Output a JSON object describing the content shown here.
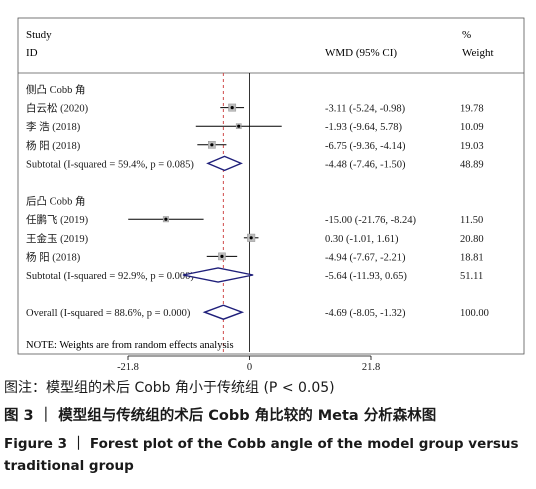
{
  "chart_data": {
    "type": "forest",
    "header": {
      "study_line1": "Study",
      "study_line2": "ID",
      "effect": "WMD (95% CI)",
      "weight_line1": "%",
      "weight_line2": "Weight"
    },
    "xaxis": {
      "range": [
        -21.8,
        21.8
      ],
      "ticks": [
        -21.8,
        0,
        21.8
      ],
      "tick_labels": [
        "-21.8",
        "0",
        "21.8"
      ],
      "reference_line": -4.69
    },
    "rows": [
      {
        "kind": "group",
        "label": "侧凸 Cobb 角"
      },
      {
        "kind": "study",
        "label": "白云松 (2020)",
        "est": -3.11,
        "lo": -5.24,
        "hi": -0.98,
        "ci": "-3.11 (-5.24, -0.98)",
        "weight": "19.78"
      },
      {
        "kind": "study",
        "label": "李 浩 (2018)",
        "est": -1.93,
        "lo": -9.64,
        "hi": 5.78,
        "ci": "-1.93 (-9.64, 5.78)",
        "weight": "10.09"
      },
      {
        "kind": "study",
        "label": "杨 阳 (2018)",
        "est": -6.75,
        "lo": -9.36,
        "hi": -4.14,
        "ci": "-6.75 (-9.36, -4.14)",
        "weight": "19.03"
      },
      {
        "kind": "subtotal",
        "label": "Subtotal  (I-squared = 59.4%, p = 0.085)",
        "est": -4.48,
        "lo": -7.46,
        "hi": -1.5,
        "ci": "-4.48 (-7.46, -1.50)",
        "weight": "48.89"
      },
      {
        "kind": "spacer"
      },
      {
        "kind": "group",
        "label": "后凸 Cobb 角"
      },
      {
        "kind": "study",
        "label": "任鹏飞 (2019)",
        "est": -15.0,
        "lo": -21.76,
        "hi": -8.24,
        "ci": "-15.00 (-21.76, -8.24)",
        "weight": "11.50"
      },
      {
        "kind": "study",
        "label": "王金玉 (2019)",
        "est": 0.3,
        "lo": -1.01,
        "hi": 1.61,
        "ci": "0.30 (-1.01, 1.61)",
        "weight": "20.80"
      },
      {
        "kind": "study",
        "label": "杨 阳 (2018)",
        "est": -4.94,
        "lo": -7.67,
        "hi": -2.21,
        "ci": "-4.94 (-7.67, -2.21)",
        "weight": "18.81"
      },
      {
        "kind": "subtotal",
        "label": "Subtotal  (I-squared = 92.9%, p = 0.000)",
        "est": -5.64,
        "lo": -11.93,
        "hi": 0.65,
        "ci": "-5.64 (-11.93, 0.65)",
        "weight": "51.11"
      },
      {
        "kind": "spacer"
      },
      {
        "kind": "overall",
        "label": "Overall  (I-squared = 88.6%, p = 0.000)",
        "est": -4.69,
        "lo": -8.05,
        "hi": -1.32,
        "ci": "-4.69 (-8.05, -1.32)",
        "weight": "100.00"
      },
      {
        "kind": "spacer"
      }
    ],
    "note": "NOTE: Weights are from random effects analysis"
  },
  "caption": {
    "line1": "图注：模型组的术后 Cobb 角小于传统组 (P < 0.05)",
    "line2": "图 3  ｜ 模型组与传统组的术后 Cobb 角比较的 Meta 分析森林图",
    "line3": "Figure 3  ｜  Forest plot of the Cobb angle of the model group versus",
    "line4": "traditional group"
  },
  "colors": {
    "diamond": "#1f1f7a",
    "reference_line": "#d04a4a",
    "text": "#1a1a1a"
  }
}
